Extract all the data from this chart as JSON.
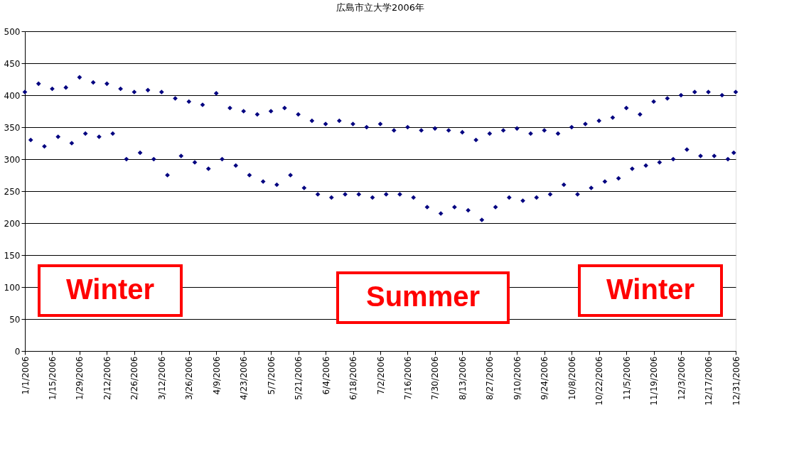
{
  "chart_data": {
    "type": "scatter",
    "title": "広島市立大学2006年",
    "series": [
      {
        "color": "#000080",
        "x": [
          "2006-01-01",
          "2006-01-04",
          "2006-01-08",
          "2006-01-11",
          "2006-01-15",
          "2006-01-18",
          "2006-01-22",
          "2006-01-25",
          "2006-01-29",
          "2006-02-01",
          "2006-02-05",
          "2006-02-08",
          "2006-02-12",
          "2006-02-15",
          "2006-02-19",
          "2006-02-22",
          "2006-02-26",
          "2006-03-01",
          "2006-03-05",
          "2006-03-08",
          "2006-03-12",
          "2006-03-15",
          "2006-03-19",
          "2006-03-22",
          "2006-03-26",
          "2006-03-29",
          "2006-04-02",
          "2006-04-05",
          "2006-04-09",
          "2006-04-12",
          "2006-04-16",
          "2006-04-19",
          "2006-04-23",
          "2006-04-26",
          "2006-04-30",
          "2006-05-03",
          "2006-05-07",
          "2006-05-10",
          "2006-05-14",
          "2006-05-17",
          "2006-05-21",
          "2006-05-24",
          "2006-05-28",
          "2006-05-31",
          "2006-06-04",
          "2006-06-07",
          "2006-06-11",
          "2006-06-14",
          "2006-06-18",
          "2006-06-21",
          "2006-06-25",
          "2006-06-28",
          "2006-07-02",
          "2006-07-05",
          "2006-07-09",
          "2006-07-12",
          "2006-07-16",
          "2006-07-19",
          "2006-07-23",
          "2006-07-26",
          "2006-07-30",
          "2006-08-02",
          "2006-08-06",
          "2006-08-09",
          "2006-08-13",
          "2006-08-16",
          "2006-08-20",
          "2006-08-23",
          "2006-08-27",
          "2006-08-30",
          "2006-09-03",
          "2006-09-06",
          "2006-09-10",
          "2006-09-13",
          "2006-09-17",
          "2006-09-20",
          "2006-09-24",
          "2006-09-27",
          "2006-10-01",
          "2006-10-04",
          "2006-10-08",
          "2006-10-11",
          "2006-10-15",
          "2006-10-18",
          "2006-10-22",
          "2006-10-25",
          "2006-10-29",
          "2006-11-01",
          "2006-11-05",
          "2006-11-08",
          "2006-11-12",
          "2006-11-15",
          "2006-11-19",
          "2006-11-22",
          "2006-11-26",
          "2006-11-29",
          "2006-12-03",
          "2006-12-06",
          "2006-12-10",
          "2006-12-13",
          "2006-12-17",
          "2006-12-20",
          "2006-12-24",
          "2006-12-27",
          "2006-12-31",
          "2006-12-30"
        ],
        "values": [
          405,
          330,
          418,
          320,
          410,
          335,
          412,
          325,
          428,
          340,
          420,
          335,
          418,
          340,
          410,
          300,
          405,
          310,
          408,
          300,
          405,
          275,
          395,
          305,
          390,
          295,
          385,
          285,
          403,
          300,
          380,
          290,
          375,
          275,
          370,
          265,
          375,
          260,
          380,
          275,
          370,
          255,
          360,
          245,
          355,
          240,
          360,
          245,
          355,
          245,
          350,
          240,
          355,
          245,
          345,
          245,
          350,
          240,
          345,
          225,
          348,
          215,
          345,
          225,
          342,
          220,
          330,
          205,
          340,
          225,
          345,
          240,
          348,
          235,
          340,
          240,
          345,
          245,
          340,
          260,
          350,
          245,
          355,
          255,
          360,
          265,
          365,
          270,
          380,
          285,
          370,
          290,
          390,
          295,
          395,
          300,
          400,
          315,
          405,
          305,
          405,
          305,
          400,
          300,
          405,
          310
        ]
      }
    ],
    "xlim": [
      "2006-01-01",
      "2006-12-31"
    ],
    "xticks": [
      {
        "value": "2006-01-01",
        "label": "1/1/2006"
      },
      {
        "value": "2006-01-15",
        "label": "1/15/2006"
      },
      {
        "value": "2006-01-29",
        "label": "1/29/2006"
      },
      {
        "value": "2006-02-12",
        "label": "2/12/2006"
      },
      {
        "value": "2006-02-26",
        "label": "2/26/2006"
      },
      {
        "value": "2006-03-12",
        "label": "3/12/2006"
      },
      {
        "value": "2006-03-26",
        "label": "3/26/2006"
      },
      {
        "value": "2006-04-09",
        "label": "4/9/2006"
      },
      {
        "value": "2006-04-23",
        "label": "4/23/2006"
      },
      {
        "value": "2006-05-07",
        "label": "5/7/2006"
      },
      {
        "value": "2006-05-21",
        "label": "5/21/2006"
      },
      {
        "value": "2006-06-04",
        "label": "6/4/2006"
      },
      {
        "value": "2006-06-18",
        "label": "6/18/2006"
      },
      {
        "value": "2006-07-02",
        "label": "7/2/2006"
      },
      {
        "value": "2006-07-16",
        "label": "7/16/2006"
      },
      {
        "value": "2006-07-30",
        "label": "7/30/2006"
      },
      {
        "value": "2006-08-13",
        "label": "8/13/2006"
      },
      {
        "value": "2006-08-27",
        "label": "8/27/2006"
      },
      {
        "value": "2006-09-10",
        "label": "9/10/2006"
      },
      {
        "value": "2006-09-24",
        "label": "9/24/2006"
      },
      {
        "value": "2006-10-08",
        "label": "10/8/2006"
      },
      {
        "value": "2006-10-22",
        "label": "10/22/2006"
      },
      {
        "value": "2006-11-05",
        "label": "11/5/2006"
      },
      {
        "value": "2006-11-19",
        "label": "11/19/2006"
      },
      {
        "value": "2006-12-03",
        "label": "12/3/2006"
      },
      {
        "value": "2006-12-17",
        "label": "12/17/2006"
      },
      {
        "value": "2006-12-31",
        "label": "12/31/2006"
      }
    ],
    "ylim": [
      0,
      500
    ],
    "yticks": [
      0,
      50,
      100,
      150,
      200,
      250,
      300,
      350,
      400,
      450,
      500
    ],
    "grid": "y",
    "marker": "diamond",
    "annotations": [
      "Winter",
      "Summer",
      "Winter"
    ]
  }
}
